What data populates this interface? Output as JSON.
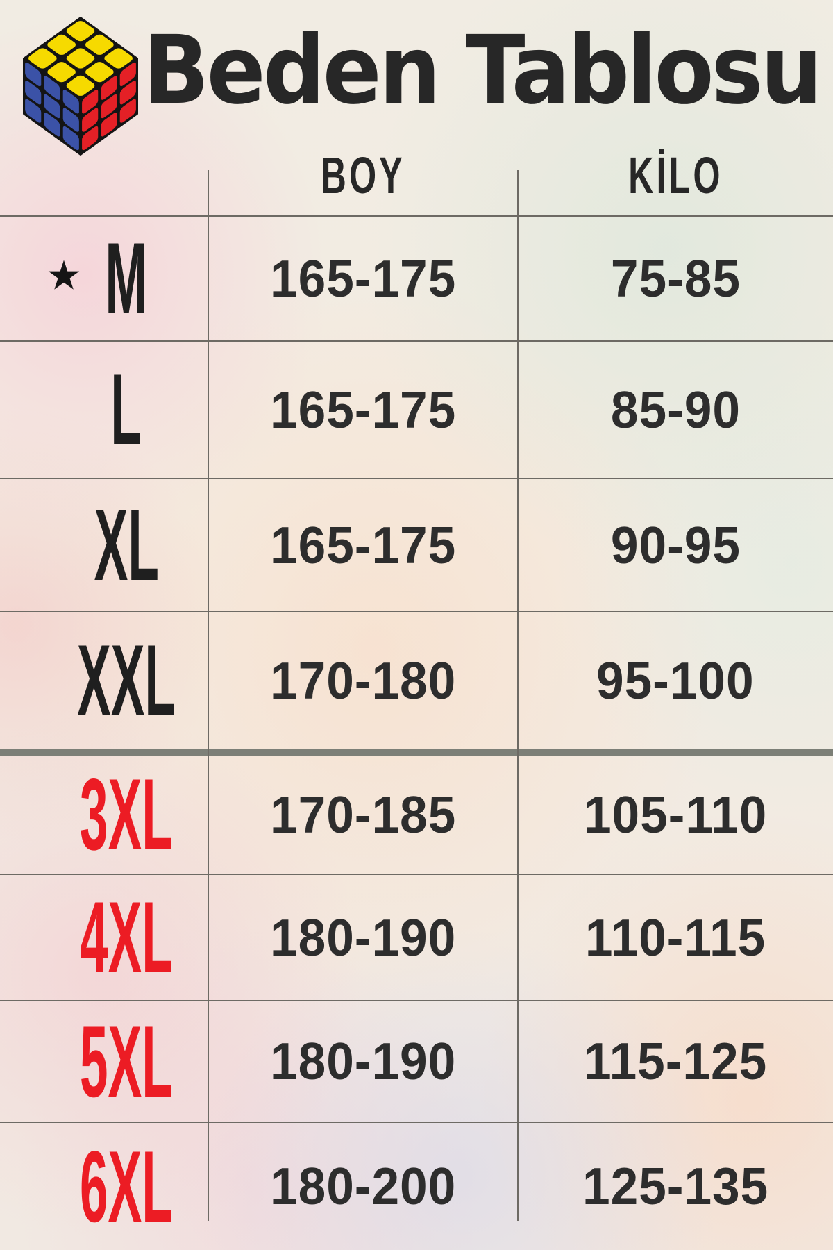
{
  "header": {
    "title": "Beden Tablosu"
  },
  "table": {
    "column_headers": {
      "boy": "BOY",
      "kilo": "KİLO"
    },
    "rows": [
      {
        "size": "M",
        "starred": true,
        "label_color": "#1f1f1f",
        "boy": "165-175",
        "kilo": "75-85"
      },
      {
        "size": "L",
        "starred": false,
        "label_color": "#1f1f1f",
        "boy": "165-175",
        "kilo": "85-90"
      },
      {
        "size": "XL",
        "starred": false,
        "label_color": "#1f1f1f",
        "boy": "165-175",
        "kilo": "90-95"
      },
      {
        "size": "XXL",
        "starred": false,
        "label_color": "#1f1f1f",
        "boy": "170-180",
        "kilo": "95-100"
      },
      {
        "size": "3XL",
        "starred": false,
        "label_color": "#ec1c24",
        "boy": "170-185",
        "kilo": "105-110"
      },
      {
        "size": "4XL",
        "starred": false,
        "label_color": "#ec1c24",
        "boy": "180-190",
        "kilo": "110-115"
      },
      {
        "size": "5XL",
        "starred": false,
        "label_color": "#ec1c24",
        "boy": "180-190",
        "kilo": "115-125"
      },
      {
        "size": "6XL",
        "starred": false,
        "label_color": "#ec1c24",
        "boy": "180-200",
        "kilo": "125-135"
      }
    ],
    "thick_divider_after": "XXL"
  },
  "icons": {
    "star": "★",
    "logo": "rubiks-cube"
  },
  "colors": {
    "ink": "#272727",
    "num": "#2d2d2d",
    "label_red": "#ec1c24",
    "grid": "#6d6a64",
    "thick": "#7c7f77",
    "cube_yellow": "#f6da00",
    "cube_blue": "#3b52a7",
    "cube_red": "#e42026",
    "cube_black": "#141414"
  }
}
